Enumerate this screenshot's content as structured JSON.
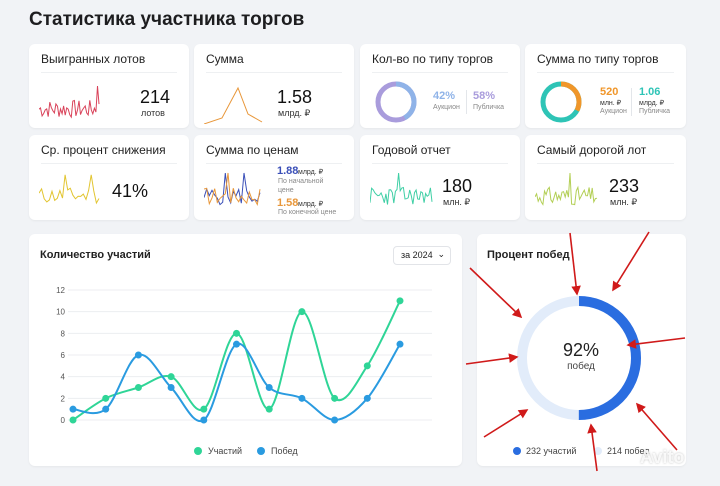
{
  "page_title": "Статистика участника торгов",
  "cards": {
    "won_lots": {
      "title": "Выигранных лотов",
      "value": "214",
      "unit": "лотов",
      "color": "#d9435a"
    },
    "sum": {
      "title": "Сумма",
      "value": "1.58",
      "unit": "млрд. ₽",
      "color": "#e8973a"
    },
    "count_by_type": {
      "title": "Кол-во по типу торгов",
      "auction_pct": "42%",
      "auction_label": "Аукцион",
      "public_pct": "58%",
      "public_label": "Публичка",
      "auction_color": "#8fb3e8",
      "public_color": "#a99cdc"
    },
    "sum_by_type": {
      "title": "Сумма по типу торгов",
      "auction_value": "520",
      "auction_unit": "млн. ₽",
      "auction_label": "Аукцион",
      "public_value": "1.06",
      "public_unit": "млрд. ₽",
      "public_label": "Публичка",
      "auction_color": "#f0962a",
      "public_color": "#2ec4b6"
    },
    "avg_reduction": {
      "title": "Ср. процент снижения",
      "value": "41%",
      "color": "#e2c531"
    },
    "sum_by_price": {
      "title": "Сумма по ценам",
      "start_value": "1.88",
      "start_unit": "млрд. ₽",
      "start_label": "По начальной цене",
      "final_value": "1.58",
      "final_unit": "млрд. ₽",
      "final_label": "По конечной цене",
      "start_color": "#3a4fb8",
      "final_color": "#e8973a"
    },
    "annual_report": {
      "title": "Годовой отчет",
      "value": "180",
      "unit": "млн. ₽",
      "color": "#3fcfa5"
    },
    "most_expensive": {
      "title": "Самый дорогой лот",
      "value": "233",
      "unit": "млн. ₽",
      "color": "#b3cf55"
    }
  },
  "participation": {
    "title": "Количество участий",
    "period": "за 2024",
    "legend_participations": "Участий",
    "legend_wins": "Побед"
  },
  "win_rate": {
    "title": "Процент побед",
    "percent": 0.92,
    "percent_label": "92%",
    "sub_label": "побед",
    "participations_label": "232 участий",
    "wins_label": "214 побед",
    "ring_color": "#2a6de0",
    "ring_bg_color": "#e2ecfa",
    "arrow_color": "#d01a1a"
  },
  "watermark": "Avito",
  "chart_data": {
    "type": "line",
    "x": [
      0,
      1,
      2,
      3,
      4,
      5,
      6,
      7,
      8,
      9,
      10
    ],
    "ylim": [
      0,
      12
    ],
    "yticks": [
      "0",
      "2",
      "4",
      "6",
      "8",
      "10",
      "12"
    ],
    "series": [
      {
        "name": "Участий",
        "color": "#2fd597",
        "values": [
          0,
          2,
          3,
          4,
          1,
          8,
          1,
          10,
          2,
          5,
          11
        ]
      },
      {
        "name": "Побед",
        "color": "#2a9be0",
        "values": [
          1,
          1,
          6,
          3,
          0,
          7,
          3,
          2,
          0,
          2,
          7
        ]
      }
    ]
  }
}
